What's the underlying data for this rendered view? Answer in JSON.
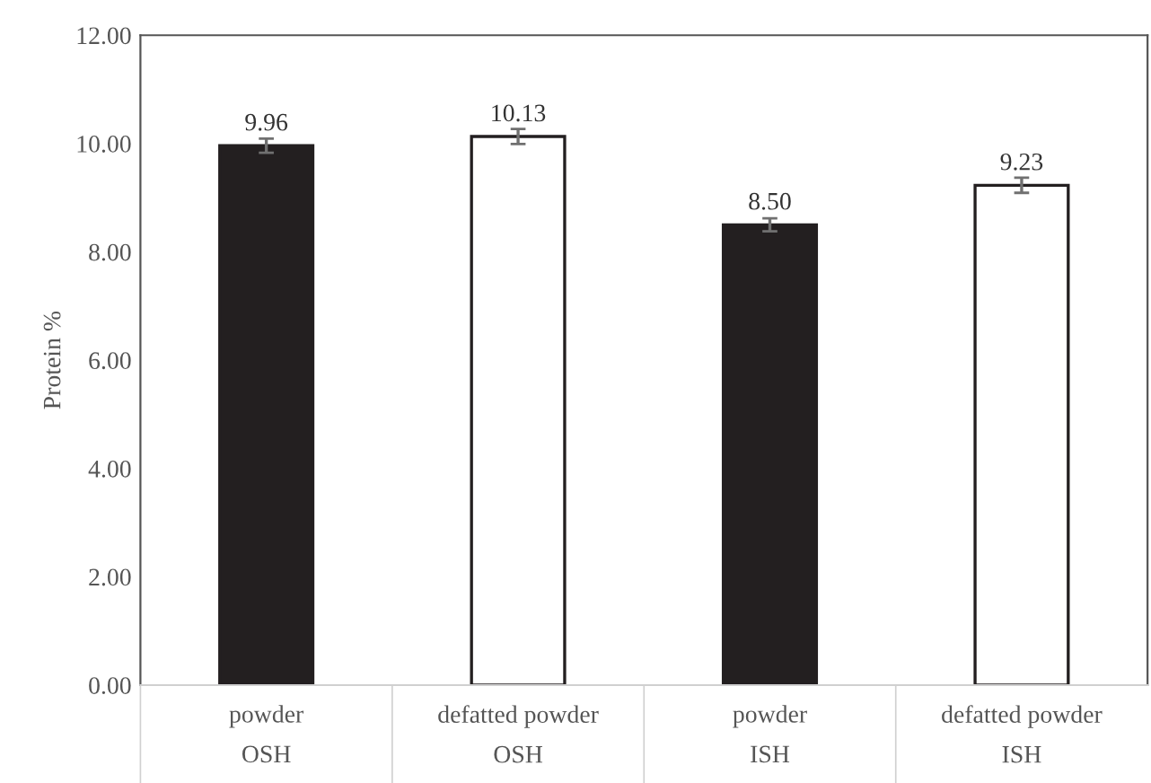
{
  "chart_data": {
    "type": "bar",
    "ylabel": "Protein %",
    "categories": [
      "powder\nOSH",
      "defatted powder\nOSH",
      "powder\nISH",
      "defatted powder\nISH"
    ],
    "values": [
      9.96,
      10.13,
      8.5,
      9.23
    ],
    "value_labels": [
      "9.96",
      "10.13",
      "8.50",
      "9.23"
    ],
    "errors": [
      0.13,
      0.14,
      0.12,
      0.14
    ],
    "colors": [
      "#231f20",
      "#ffffff",
      "#231f20",
      "#ffffff"
    ],
    "ylim": [
      0,
      12
    ],
    "yticks": [
      {
        "value": 0,
        "label": "0.00"
      },
      {
        "value": 2,
        "label": "2.00"
      },
      {
        "value": 4,
        "label": "4.00"
      },
      {
        "value": 6,
        "label": "6.00"
      },
      {
        "value": 8,
        "label": "8.00"
      },
      {
        "value": 10,
        "label": "10.00"
      },
      {
        "value": 12,
        "label": "12.00"
      }
    ],
    "grid": false,
    "legend": false
  }
}
